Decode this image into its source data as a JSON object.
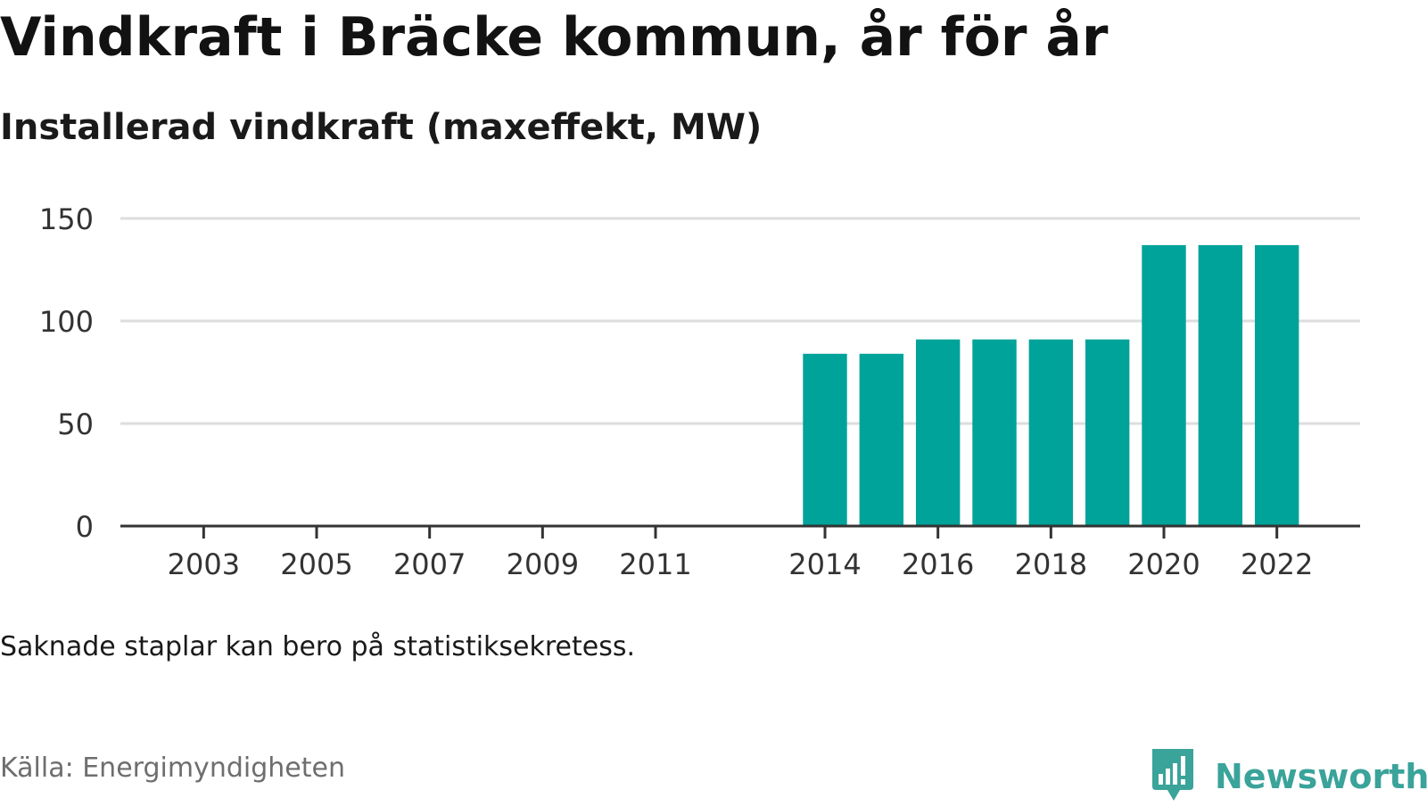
{
  "title": "Vindkraft i Bräcke kommun, år för år",
  "subtitle": "Installerad vindkraft (maxeffekt, MW)",
  "note": "Saknade staplar kan bero på statistiksekretess.",
  "source": "Källa: Energimyndigheten",
  "brand": {
    "name": "Newsworthy",
    "icon": "newsworthy-logo-icon",
    "color": "#3aa39a"
  },
  "colors": {
    "bar": "#00a39a",
    "grid": "#dddddd",
    "axis": "#333333"
  },
  "chart_data": {
    "type": "bar",
    "title": "Vindkraft i Bräcke kommun, år för år",
    "subtitle": "Installerad vindkraft (maxeffekt, MW)",
    "xlabel": "",
    "ylabel": "",
    "x": [
      2002,
      2003,
      2004,
      2005,
      2006,
      2007,
      2008,
      2009,
      2010,
      2011,
      2012,
      2013,
      2014,
      2015,
      2016,
      2017,
      2018,
      2019,
      2020,
      2021,
      2022,
      2023
    ],
    "values": [
      null,
      null,
      null,
      null,
      null,
      null,
      null,
      null,
      null,
      null,
      null,
      null,
      84,
      84,
      91,
      91,
      91,
      91,
      137,
      137,
      137,
      null
    ],
    "xticks": [
      "2003",
      "2005",
      "2007",
      "2009",
      "2011",
      "2014",
      "2016",
      "2018",
      "2020",
      "2022"
    ],
    "yticks": [
      "0",
      "50",
      "100",
      "150"
    ],
    "ylim": [
      0,
      150
    ],
    "grid": true,
    "legend": "none"
  }
}
